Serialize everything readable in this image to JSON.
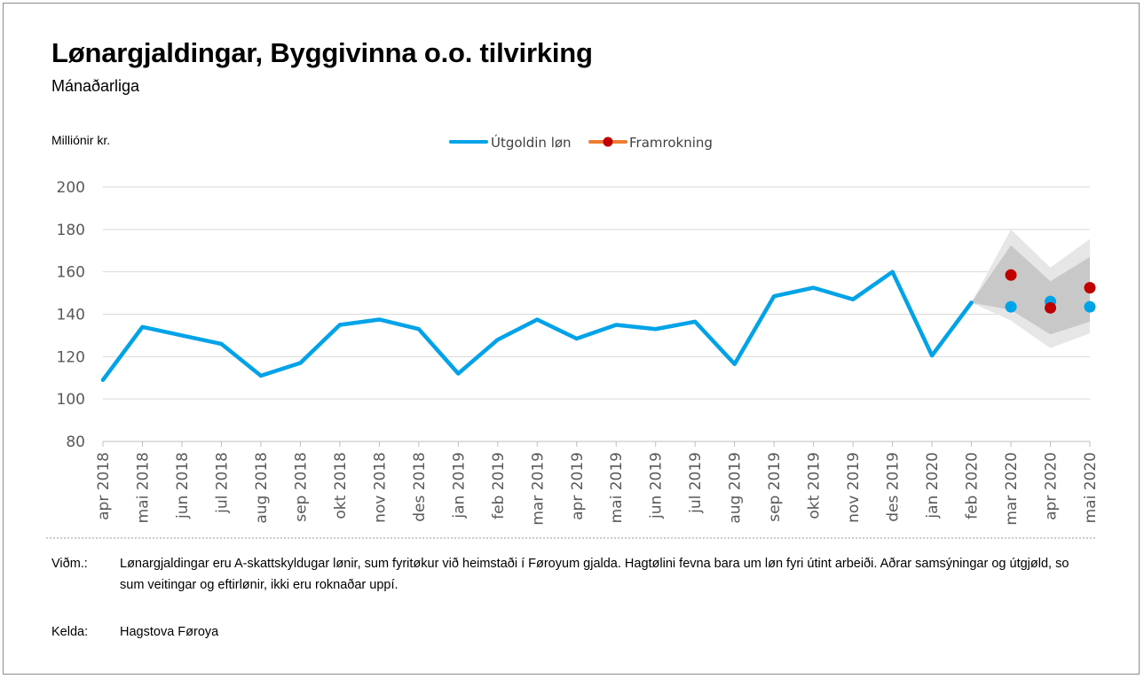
{
  "title": "Lønargjaldingar, Byggivinna o.o. tilvirking",
  "subtitle": "Mánaðarliga",
  "footer": {
    "note_label": "Viðm.:",
    "note_text": "Lønargjaldingar eru A-skattskyldugar lønir, sum fyritøkur við heimstaði í Føroyum gjalda. Hagtølini fevna bara um løn fyri útint arbeiði. Aðrar samsýningar og útgjøld, so sum veitingar og eftirlønir, ikki eru roknaðar uppí.",
    "source_label": "Kelda:",
    "source_text": "Hagstova Føroya"
  },
  "chart_data": {
    "type": "line",
    "ylabel": "Milliónir kr.",
    "ylim": [
      80,
      200
    ],
    "yticks": [
      80,
      100,
      120,
      140,
      160,
      180,
      200
    ],
    "grid": true,
    "legend_position": "top",
    "categories": [
      "apr 2018",
      "mai 2018",
      "jun 2018",
      "jul 2018",
      "aug 2018",
      "sep 2018",
      "okt 2018",
      "nov 2018",
      "des 2018",
      "jan 2019",
      "feb 2019",
      "mar 2019",
      "apr 2019",
      "mai 2019",
      "jun 2019",
      "jul 2019",
      "aug 2019",
      "sep 2019",
      "okt 2019",
      "nov 2019",
      "des 2019",
      "jan 2020",
      "feb 2020",
      "mar 2020",
      "apr 2020",
      "mai 2020"
    ],
    "series": [
      {
        "name": "Útgoldin løn",
        "color": "#00A3E8",
        "values": [
          109,
          134,
          130,
          126,
          111,
          117,
          135,
          137.5,
          133,
          112,
          128,
          137.5,
          128.5,
          135,
          133,
          136.5,
          116.5,
          148.5,
          152.5,
          147,
          160,
          120.5,
          145.5,
          null,
          null,
          null
        ]
      },
      {
        "name": "Framrokning",
        "color": "#C00000",
        "line_color": "#ED7D31",
        "values": [
          null,
          null,
          null,
          null,
          null,
          null,
          null,
          null,
          null,
          null,
          null,
          null,
          null,
          null,
          null,
          null,
          null,
          null,
          null,
          null,
          null,
          null,
          null,
          158.5,
          143,
          152.5
        ]
      }
    ],
    "extra_points": {
      "color": "#00A3E8",
      "x": [
        "mar 2020",
        "apr 2020",
        "mai 2020"
      ],
      "values": [
        143.5,
        146,
        143.5
      ]
    },
    "bands": [
      {
        "color": "#E6E6E6",
        "x": [
          "feb 2020",
          "mar 2020",
          "apr 2020",
          "mai 2020"
        ],
        "lower": [
          145.5,
          137,
          124,
          131
        ],
        "upper": [
          145.5,
          180,
          162,
          175.5
        ]
      },
      {
        "color": "#C8C8C8",
        "x": [
          "feb 2020",
          "mar 2020",
          "apr 2020",
          "mai 2020"
        ],
        "lower": [
          145.5,
          142,
          130.5,
          136.5
        ],
        "upper": [
          145.5,
          172.5,
          155.5,
          167
        ]
      }
    ]
  }
}
